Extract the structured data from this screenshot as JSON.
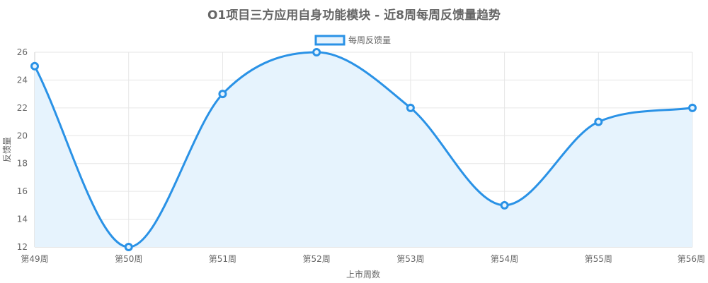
{
  "chart_data": {
    "type": "line",
    "title": "O1项目三方应用自身功能模块 - 近8周每周反馈量趋势",
    "xlabel": "上市周数",
    "ylabel": "反馈量",
    "categories": [
      "第49周",
      "第50周",
      "第51周",
      "第52周",
      "第53周",
      "第54周",
      "第55周",
      "第56周"
    ],
    "series": [
      {
        "name": "每周反馈量",
        "values": [
          25,
          12,
          23,
          26,
          22,
          15,
          21,
          22
        ],
        "color": "#2a92e6",
        "fill": "#e6f3fd"
      }
    ],
    "ylim": [
      12,
      26
    ],
    "yticks": [
      12,
      14,
      16,
      18,
      20,
      22,
      24,
      26
    ],
    "grid": true,
    "legend": "top-center",
    "smooth": true
  }
}
